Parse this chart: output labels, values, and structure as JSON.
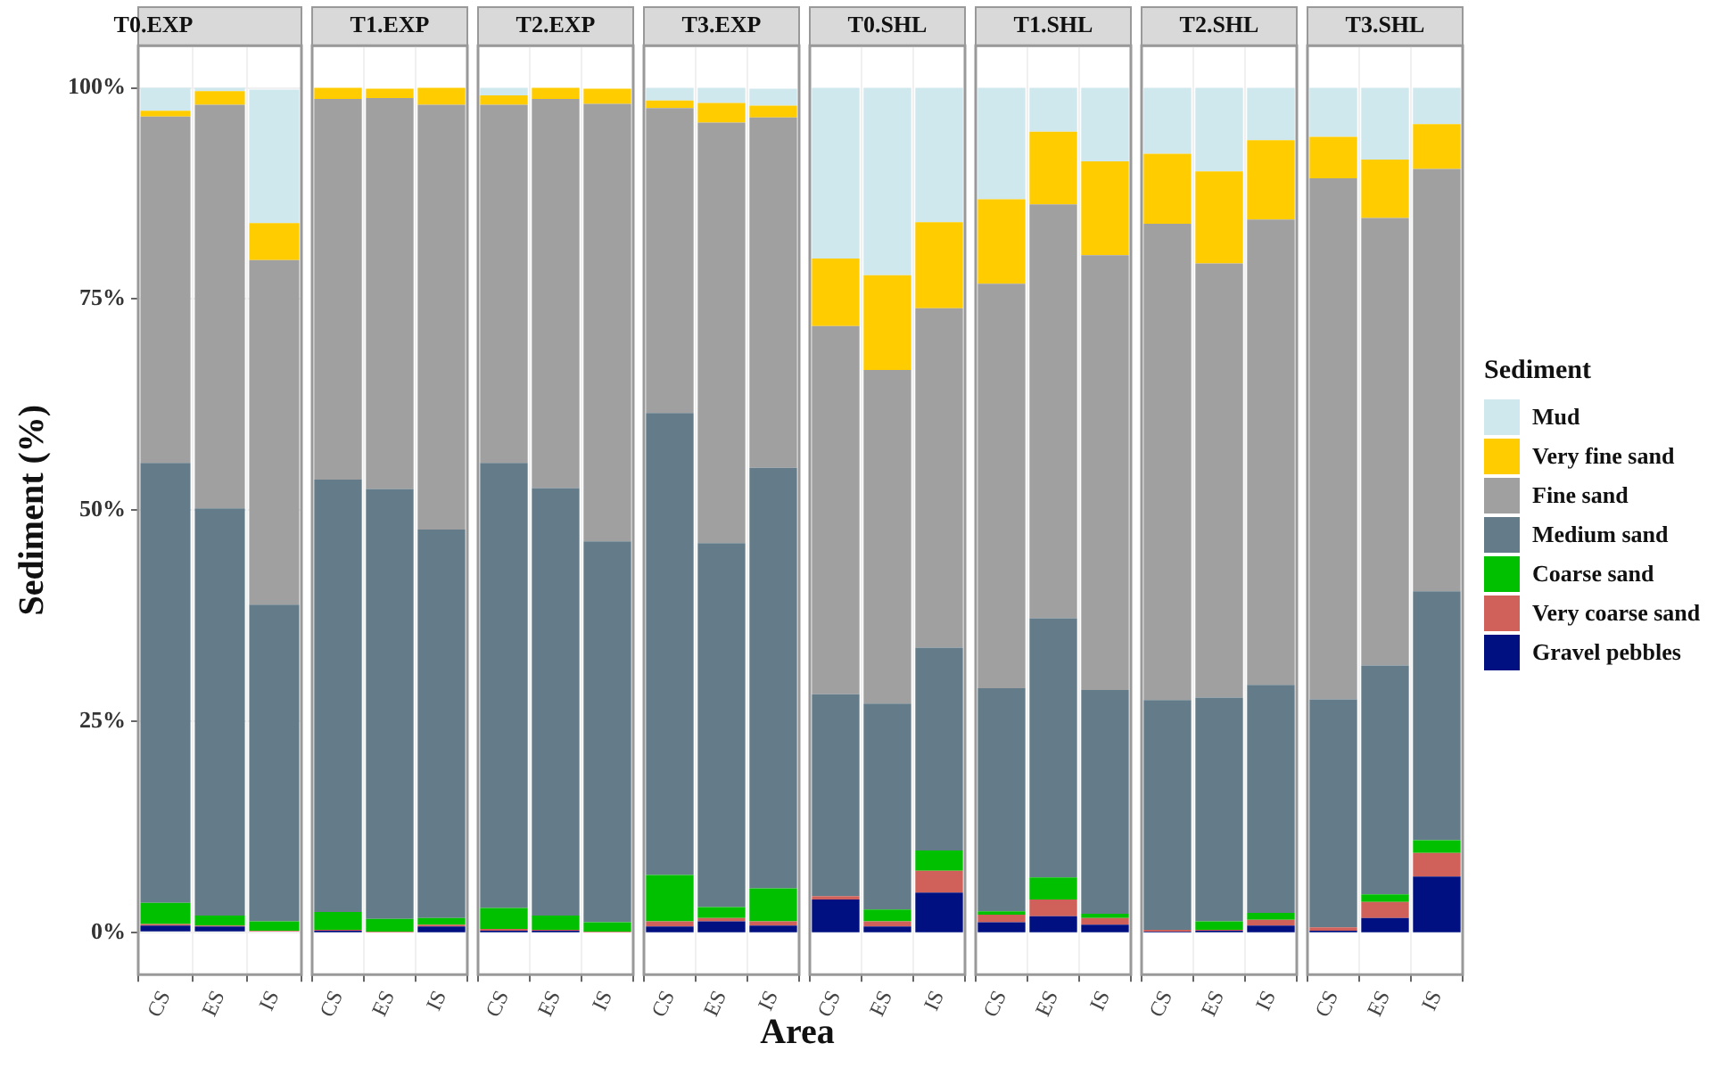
{
  "chart_data": [
    {
      "type": "bar",
      "title": "T0.EXP",
      "ylabel": "Sediment (%)",
      "categories": [
        "CS",
        "ES",
        "IS"
      ],
      "stacked": true,
      "grid": true,
      "ylim": [
        -5,
        105
      ],
      "yticks": [
        {
          "value": 0,
          "label": "0%"
        },
        {
          "value": 25,
          "label": "25%"
        },
        {
          "value": 50,
          "label": "50%"
        },
        {
          "value": 75,
          "label": "75%"
        },
        {
          "value": 100,
          "label": "100%"
        }
      ],
      "series": [
        {
          "color": "#001080",
          "values": [
            0.8,
            0.7,
            null
          ]
        },
        {
          "color": "#d0605a",
          "values": [
            0.2,
            0.1,
            0.2
          ]
        },
        {
          "color": "#00c000",
          "values": [
            2.5,
            1.2,
            1.1
          ]
        },
        {
          "color": "#647c89",
          "values": [
            52.1,
            48.2,
            37.5
          ]
        },
        {
          "color": "#a0a0a0",
          "values": [
            41,
            47.8,
            40.8
          ]
        },
        {
          "color": "#ffcc00",
          "values": [
            0.7,
            1.6,
            4.4
          ]
        },
        {
          "color": "#cfe8ee",
          "values": [
            2.7,
            0.4,
            15.8
          ]
        }
      ]
    },
    {
      "type": "bar",
      "title": "T1.EXP",
      "categories": [
        "CS",
        "ES",
        "IS"
      ],
      "stacked": true,
      "grid": true,
      "tick_labels": "x",
      "ylim": [
        -5,
        105
      ],
      "series": [
        {
          "color": "#001080",
          "values": [
            0.2,
            null,
            0.7
          ]
        },
        {
          "color": "#d0605a",
          "values": [
            0.1,
            0.1,
            0.2
          ]
        },
        {
          "color": "#00c000",
          "values": [
            2.1,
            1.5,
            0.8
          ]
        },
        {
          "color": "#647c89",
          "values": [
            51.2,
            50.9,
            46.0
          ]
        },
        {
          "color": "#a0a0a0",
          "values": [
            45.1,
            46.3,
            50.3
          ]
        },
        {
          "color": "#ffcc00",
          "values": [
            1.3,
            1.1,
            2.0
          ]
        },
        {
          "color": "#cfe8ee",
          "values": [
            0,
            0,
            0
          ]
        }
      ]
    },
    {
      "type": "bar",
      "title": "T2.EXP",
      "categories": [
        "CS",
        "ES",
        "IS"
      ],
      "stacked": true,
      "grid": true,
      "tick_labels": "x",
      "ylim": [
        -5,
        105
      ],
      "series": [
        {
          "color": "#001080",
          "values": [
            0.2,
            0.2,
            null
          ]
        },
        {
          "color": "#d0605a",
          "values": [
            0.2,
            0.1,
            0.1
          ]
        },
        {
          "color": "#00c000",
          "values": [
            2.5,
            1.7,
            1.1
          ]
        },
        {
          "color": "#647c89",
          "values": [
            52.7,
            50.6,
            45.1
          ]
        },
        {
          "color": "#a0a0a0",
          "values": [
            42.4,
            46.1,
            51.8
          ]
        },
        {
          "color": "#ffcc00",
          "values": [
            1.1,
            1.3,
            1.8
          ]
        },
        {
          "color": "#cfe8ee",
          "values": [
            0.9,
            0,
            0
          ]
        }
      ]
    },
    {
      "type": "bar",
      "title": "T3.EXP",
      "categories": [
        "CS",
        "ES",
        "IS"
      ],
      "stacked": true,
      "grid": true,
      "tick_labels": "x",
      "ylim": [
        -5,
        105
      ],
      "series": [
        {
          "color": "#001080",
          "values": [
            0.7,
            1.3,
            0.8
          ]
        },
        {
          "color": "#d0605a",
          "values": [
            0.6,
            0.4,
            0.5
          ]
        },
        {
          "color": "#00c000",
          "values": [
            5.5,
            1.3,
            3.9
          ]
        },
        {
          "color": "#647c89",
          "values": [
            54.7,
            43.1,
            49.8
          ]
        },
        {
          "color": "#a0a0a0",
          "values": [
            36.1,
            49.8,
            41.5
          ]
        },
        {
          "color": "#ffcc00",
          "values": [
            0.9,
            2.3,
            1.4
          ]
        },
        {
          "color": "#cfe8ee",
          "values": [
            1.5,
            1.8,
            2.0
          ]
        }
      ]
    },
    {
      "type": "bar",
      "title": "T0.SHL",
      "xlabel": "Area",
      "categories": [
        "CS",
        "ES",
        "IS"
      ],
      "stacked": true,
      "grid": true,
      "tick_labels": "x",
      "ylim": [
        -5,
        105
      ],
      "series": [
        {
          "color": "#001080",
          "values": [
            3.9,
            0.7,
            4.7
          ]
        },
        {
          "color": "#d0605a",
          "values": [
            0.4,
            0.6,
            2.6
          ]
        },
        {
          "color": "#00c000",
          "values": [
            0,
            1.4,
            2.4
          ]
        },
        {
          "color": "#647c89",
          "values": [
            23.9,
            24.4,
            24.0
          ]
        },
        {
          "color": "#a0a0a0",
          "values": [
            43.6,
            39.5,
            40.2
          ]
        },
        {
          "color": "#ffcc00",
          "values": [
            8.0,
            11.2,
            10.2
          ]
        },
        {
          "color": "#cfe8ee",
          "values": [
            20.2,
            22.2,
            15.9
          ]
        }
      ]
    },
    {
      "type": "bar",
      "title": "T1.SHL",
      "categories": [
        "CS",
        "ES",
        "IS"
      ],
      "stacked": true,
      "grid": true,
      "tick_labels": "x",
      "ylim": [
        -5,
        105
      ],
      "series": [
        {
          "color": "#001080",
          "values": [
            1.2,
            1.9,
            0.9
          ]
        },
        {
          "color": "#d0605a",
          "values": [
            0.9,
            2.0,
            0.8
          ]
        },
        {
          "color": "#00c000",
          "values": [
            0.4,
            2.6,
            0.5
          ]
        },
        {
          "color": "#647c89",
          "values": [
            26.4,
            30.7,
            26.5
          ]
        },
        {
          "color": "#a0a0a0",
          "values": [
            47.9,
            49.0,
            51.5
          ]
        },
        {
          "color": "#ffcc00",
          "values": [
            10.0,
            8.6,
            11.1
          ]
        },
        {
          "color": "#cfe8ee",
          "values": [
            13.2,
            5.2,
            8.7
          ]
        }
      ]
    },
    {
      "type": "bar",
      "title": "T2.SHL",
      "categories": [
        "CS",
        "ES",
        "IS"
      ],
      "stacked": true,
      "grid": true,
      "tick_labels": "x",
      "ylim": [
        -5,
        105
      ],
      "series": [
        {
          "color": "#001080",
          "values": [
            0.1,
            0.2,
            0.8
          ]
        },
        {
          "color": "#d0605a",
          "values": [
            0.2,
            0.1,
            0.7
          ]
        },
        {
          "color": "#00c000",
          "values": [
            0,
            1.0,
            0.8
          ]
        },
        {
          "color": "#647c89",
          "values": [
            27.2,
            26.5,
            27.0
          ]
        },
        {
          "color": "#a0a0a0",
          "values": [
            56.4,
            51.4,
            55.1
          ]
        },
        {
          "color": "#ffcc00",
          "values": [
            8.3,
            10.9,
            9.4
          ]
        },
        {
          "color": "#cfe8ee",
          "values": [
            7.8,
            9.9,
            6.2
          ]
        }
      ]
    },
    {
      "type": "bar",
      "title": "T3.SHL",
      "categories": [
        "CS",
        "ES",
        "IS"
      ],
      "stacked": true,
      "grid": true,
      "tick_labels": "x",
      "ylim": [
        -5,
        105
      ],
      "legend": "right",
      "legend_title": "Sediment",
      "series": [
        {
          "name": "Gravel pebbles",
          "color": "#001080",
          "values": [
            0.2,
            1.7,
            6.6
          ]
        },
        {
          "name": "Very coarse sand",
          "color": "#d0605a",
          "values": [
            0.4,
            1.9,
            2.8
          ]
        },
        {
          "name": "Coarse sand",
          "color": "#00c000",
          "values": [
            0,
            0.9,
            1.5
          ]
        },
        {
          "name": "Medium sand",
          "color": "#647c89",
          "values": [
            27.0,
            27.1,
            29.5
          ]
        },
        {
          "name": "Fine sand",
          "color": "#a0a0a0",
          "values": [
            61.7,
            53.0,
            50.0
          ]
        },
        {
          "name": "Very fine sand",
          "color": "#ffcc00",
          "values": [
            4.9,
            6.9,
            5.3
          ]
        },
        {
          "name": "Mud",
          "color": "#cfe8ee",
          "values": [
            5.8,
            8.5,
            4.3
          ]
        }
      ]
    }
  ]
}
